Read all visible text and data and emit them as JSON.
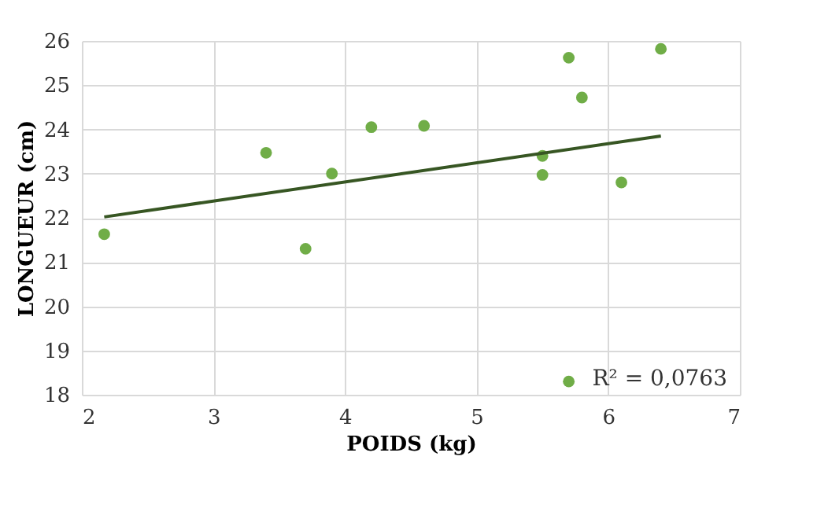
{
  "chart_data": {
    "type": "scatter",
    "xlabel": "POIDS (kg)",
    "ylabel": "LONGUEUR (cm)",
    "xlim": [
      2,
      7
    ],
    "ylim": [
      18,
      26
    ],
    "xticks": [
      2,
      3,
      4,
      5,
      6,
      7
    ],
    "yticks": [
      18,
      19,
      20,
      21,
      22,
      23,
      24,
      25,
      26
    ],
    "grid": true,
    "legend": false,
    "series": [
      {
        "marker": "circle",
        "color": "#70ad47",
        "x": [
          2.17,
          3.4,
          3.7,
          3.9,
          4.2,
          4.6,
          5.5,
          5.5,
          5.7,
          5.8,
          6.1,
          6.4,
          5.7
        ],
        "values": [
          21.63,
          23.47,
          21.3,
          23.0,
          24.05,
          24.08,
          23.4,
          22.97,
          25.62,
          24.72,
          22.8,
          25.82,
          18.3
        ]
      },
      {
        "type": "line",
        "marker": "none",
        "color": "#375623",
        "x": [
          2.17,
          6.4
        ],
        "values": [
          22.02,
          23.85
        ]
      }
    ],
    "annotations": [
      "R² = 0,0763"
    ]
  }
}
